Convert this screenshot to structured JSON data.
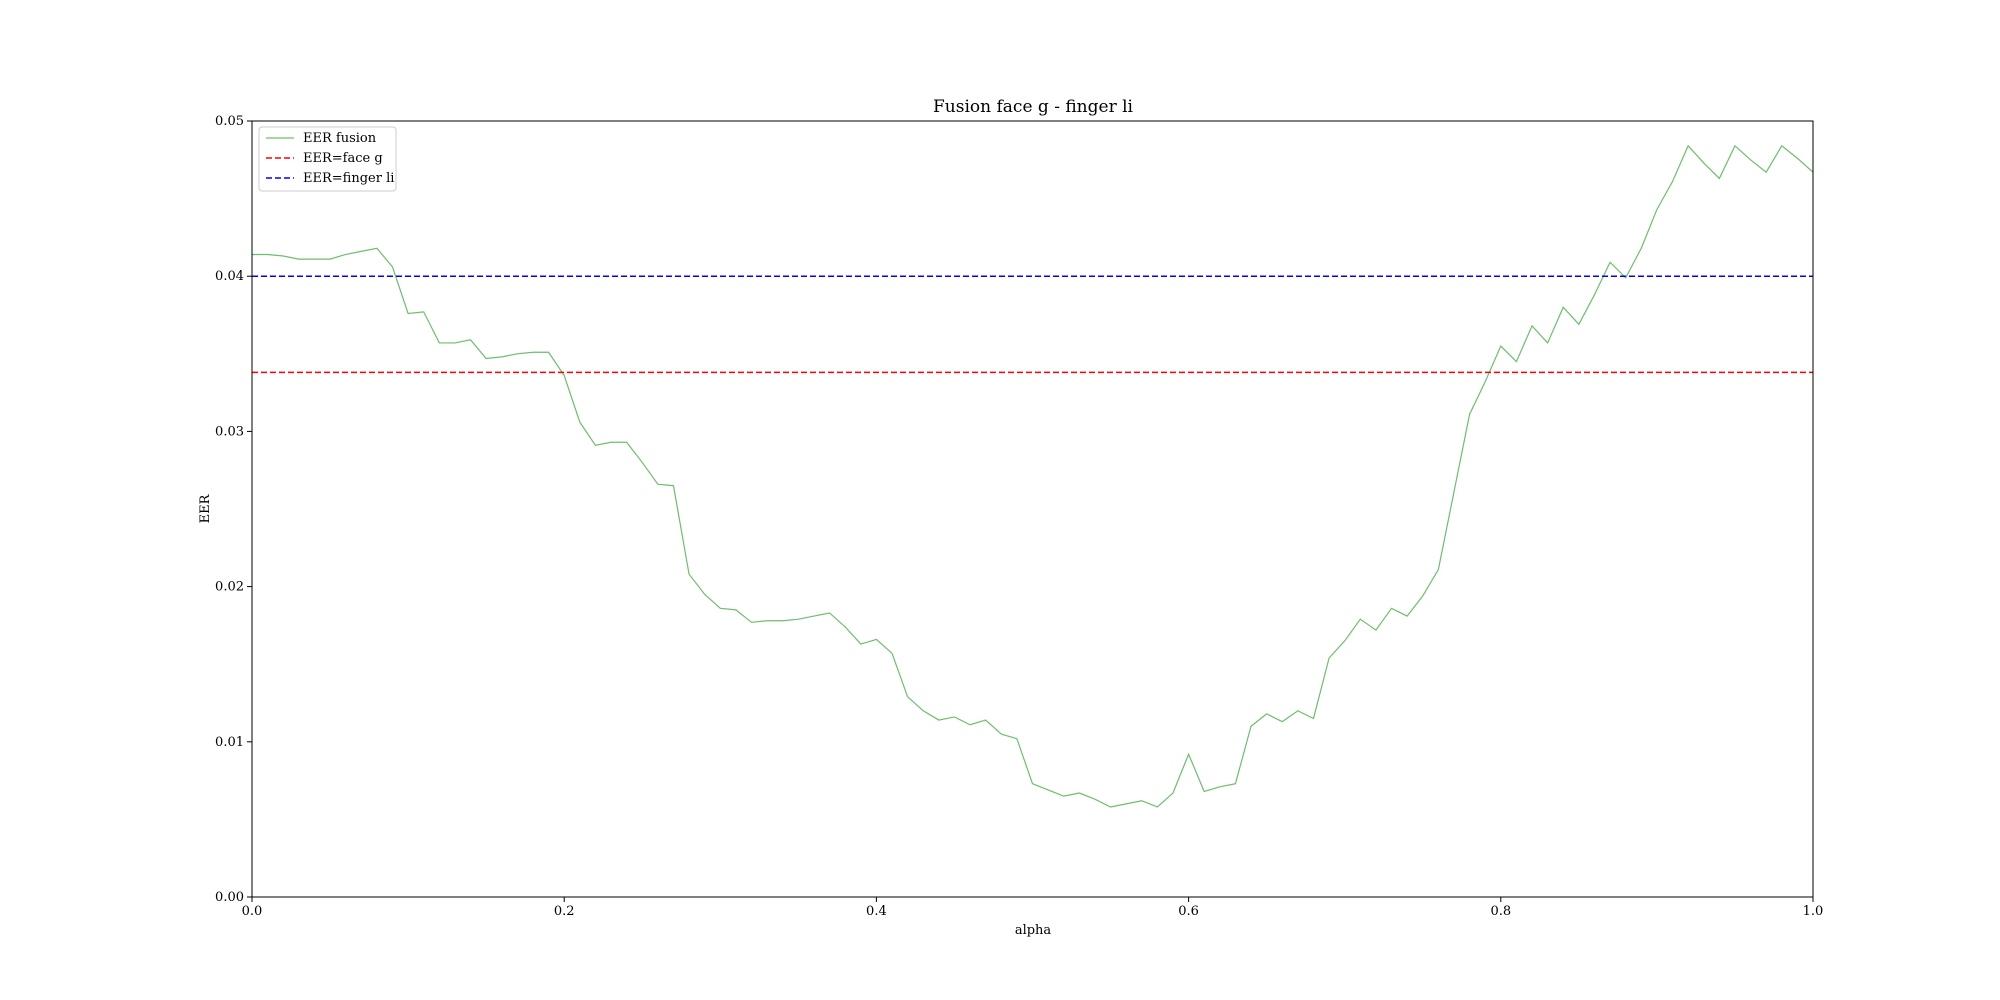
{
  "chart_data": {
    "type": "line",
    "title": "Fusion face g - finger li",
    "xlabel": "alpha",
    "ylabel": "EER",
    "xlim": [
      0.0,
      1.0
    ],
    "ylim": [
      0.0,
      0.05
    ],
    "xticks": [
      "0.0",
      "0.2",
      "0.4",
      "0.6",
      "0.8",
      "1.0"
    ],
    "yticks": [
      "0.00",
      "0.01",
      "0.02",
      "0.03",
      "0.04",
      "0.05"
    ],
    "grid": false,
    "legend_position": "top-left",
    "x": [
      0.0,
      0.01,
      0.02,
      0.03,
      0.04,
      0.05,
      0.06,
      0.07,
      0.08,
      0.09,
      0.1,
      0.11,
      0.12,
      0.13,
      0.14,
      0.15,
      0.16,
      0.17,
      0.18,
      0.19,
      0.2,
      0.21,
      0.22,
      0.23,
      0.24,
      0.25,
      0.26,
      0.27,
      0.28,
      0.29,
      0.3,
      0.31,
      0.32,
      0.33,
      0.34,
      0.35,
      0.36,
      0.37,
      0.38,
      0.39,
      0.4,
      0.41,
      0.42,
      0.43,
      0.44,
      0.45,
      0.46,
      0.47,
      0.48,
      0.49,
      0.5,
      0.51,
      0.52,
      0.53,
      0.54,
      0.55,
      0.56,
      0.57,
      0.58,
      0.59,
      0.6,
      0.61,
      0.62,
      0.63,
      0.64,
      0.65,
      0.66,
      0.67,
      0.68,
      0.69,
      0.7,
      0.71,
      0.72,
      0.73,
      0.74,
      0.75,
      0.76,
      0.77,
      0.78,
      0.79,
      0.8,
      0.81,
      0.82,
      0.83,
      0.84,
      0.85,
      0.86,
      0.87,
      0.88,
      0.89,
      0.9,
      0.91,
      0.92,
      0.93,
      0.94,
      0.95,
      0.96,
      0.97,
      0.98,
      0.99,
      1.0
    ],
    "series": [
      {
        "name": "EER fusion",
        "color": "#6cbf6c",
        "style": "solid",
        "values": [
          0.0414,
          0.0414,
          0.0413,
          0.0411,
          0.0411,
          0.0411,
          0.0414,
          0.0416,
          0.0418,
          0.0406,
          0.0376,
          0.0377,
          0.0357,
          0.0357,
          0.0359,
          0.0347,
          0.0348,
          0.035,
          0.0351,
          0.0351,
          0.0336,
          0.0306,
          0.0291,
          0.0293,
          0.0293,
          0.028,
          0.0266,
          0.0265,
          0.0208,
          0.0195,
          0.0186,
          0.0185,
          0.0177,
          0.0178,
          0.0178,
          0.0179,
          0.0181,
          0.0183,
          0.0174,
          0.0163,
          0.0166,
          0.0157,
          0.0129,
          0.012,
          0.0114,
          0.0116,
          0.0111,
          0.0114,
          0.0105,
          0.0102,
          0.0073,
          0.0069,
          0.0065,
          0.0067,
          0.0063,
          0.0058,
          0.006,
          0.0062,
          0.0058,
          0.0067,
          0.0092,
          0.0068,
          0.0071,
          0.0073,
          0.011,
          0.0118,
          0.0113,
          0.012,
          0.0115,
          0.0154,
          0.0165,
          0.0179,
          0.0172,
          0.0186,
          0.0181,
          0.0194,
          0.0211,
          0.0261,
          0.0311,
          0.0332,
          0.0355,
          0.0345,
          0.0368,
          0.0357,
          0.038,
          0.0369,
          0.0388,
          0.0409,
          0.0399,
          0.0418,
          0.0443,
          0.0461,
          0.0484,
          0.0473,
          0.0463,
          0.0484,
          0.0475,
          0.0467,
          0.0484,
          0.0476,
          0.0467
        ]
      },
      {
        "name": "EER=face g",
        "color": "#ff0000",
        "style": "dashed",
        "constant": 0.0338
      },
      {
        "name": "EER=finger li",
        "color": "#0000ff",
        "style": "dashed",
        "constant": 0.04
      }
    ]
  }
}
